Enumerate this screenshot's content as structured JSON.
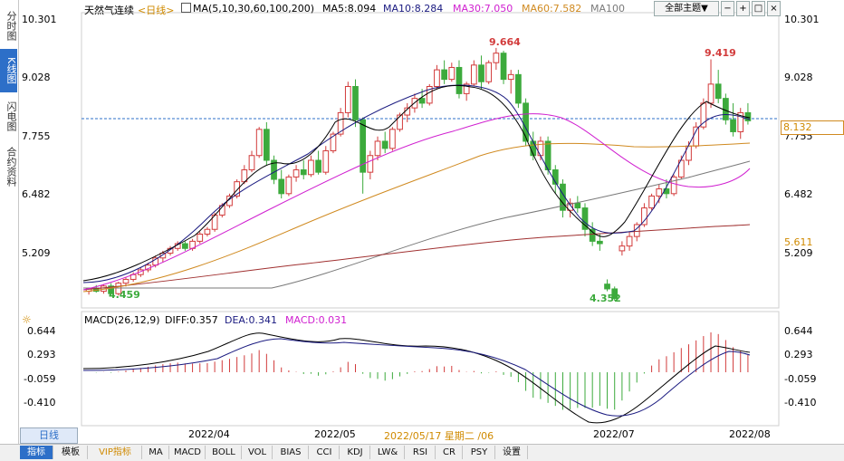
{
  "side_tabs": [
    {
      "label": "分时图",
      "active": false
    },
    {
      "label": "K线图",
      "active": true
    },
    {
      "label": "闪电图",
      "active": false
    },
    {
      "label": "合约资料",
      "active": false
    }
  ],
  "header": {
    "instrument": "天然气连续",
    "period": "<日线>",
    "ma_label": "MA(5,10,30,60,100,200)",
    "ma5": "MA5:8.094",
    "ma10": "MA10:8.284",
    "ma30": "MA30:7.050",
    "ma60": "MA60:7.582",
    "ma100": "MA100",
    "theme_button": "全部主题▼"
  },
  "colors": {
    "up": "#d23b3b",
    "down": "#3caa3c",
    "ma5": "#000000",
    "ma10": "#1a1a80",
    "ma30": "#d020d0",
    "ma60": "#d08a20",
    "ma100": "#7a7a7a",
    "ma200": "#a03030",
    "macd_diff": "#000000",
    "macd_dea": "#1a1a80",
    "accent": "#2d6fc8"
  },
  "price_axis": {
    "ticks": [
      "10.301",
      "9.028",
      "7.755",
      "6.482",
      "5.209"
    ],
    "current_price": "8.132",
    "ma_tag": "5.611",
    "high_label": "9.664",
    "high2_label": "9.419",
    "low_label": "4.352",
    "low_start_label": "4.459"
  },
  "macd": {
    "label": "MACD(26,12,9)",
    "diff": "DIFF:0.357",
    "dea": "DEA:0.341",
    "macd": "MACD:0.031",
    "ticks": [
      "0.644",
      "0.293",
      "-0.059",
      "-0.410"
    ]
  },
  "date_axis": {
    "labels": [
      "2022/04",
      "2022/05",
      "2022/05/17 星期二 /06",
      "2022/07",
      "2022/08"
    ],
    "period_tag": "日线"
  },
  "toolbar": {
    "items": [
      "指标",
      "模板",
      "VIP指标",
      "MA",
      "MACD",
      "BOLL",
      "VOL",
      "BIAS",
      "CCI",
      "KDJ",
      "LW&",
      "RSI",
      "CR",
      "PSY",
      "设置"
    ]
  },
  "chart_data": {
    "type": "candlestick",
    "title": "天然气连续 日线",
    "ylim": [
      4.2,
      10.4
    ],
    "series": [
      {
        "name": "OHLC",
        "values": [
          [
            4.55,
            4.62,
            4.48,
            4.6
          ],
          [
            4.6,
            4.68,
            4.52,
            4.55
          ],
          [
            4.55,
            4.7,
            4.5,
            4.66
          ],
          [
            4.66,
            4.72,
            4.45,
            4.5
          ],
          [
            4.5,
            4.75,
            4.46,
            4.72
          ],
          [
            4.72,
            4.85,
            4.65,
            4.8
          ],
          [
            4.8,
            4.95,
            4.75,
            4.9
          ],
          [
            4.9,
            5.05,
            4.85,
            5.0
          ],
          [
            5.0,
            5.15,
            4.95,
            5.1
          ],
          [
            5.1,
            5.3,
            5.05,
            5.25
          ],
          [
            5.25,
            5.4,
            5.15,
            5.35
          ],
          [
            5.35,
            5.5,
            5.3,
            5.45
          ],
          [
            5.45,
            5.6,
            5.4,
            5.55
          ],
          [
            5.55,
            5.6,
            5.4,
            5.45
          ],
          [
            5.45,
            5.65,
            5.4,
            5.6
          ],
          [
            5.6,
            5.8,
            5.55,
            5.75
          ],
          [
            5.75,
            5.9,
            5.7,
            5.85
          ],
          [
            5.85,
            6.2,
            5.8,
            6.15
          ],
          [
            6.15,
            6.4,
            6.1,
            6.35
          ],
          [
            6.35,
            6.6,
            6.3,
            6.55
          ],
          [
            6.55,
            6.9,
            6.5,
            6.85
          ],
          [
            6.85,
            7.2,
            6.8,
            7.1
          ],
          [
            7.1,
            7.5,
            7.05,
            7.4
          ],
          [
            7.4,
            8.0,
            7.35,
            7.95
          ],
          [
            7.95,
            8.1,
            7.2,
            7.3
          ],
          [
            7.3,
            7.4,
            6.8,
            6.9
          ],
          [
            6.9,
            7.1,
            6.5,
            6.6
          ],
          [
            6.6,
            7.0,
            6.55,
            6.95
          ],
          [
            6.95,
            7.2,
            6.85,
            7.1
          ],
          [
            7.1,
            7.3,
            6.9,
            7.0
          ],
          [
            7.0,
            7.4,
            6.95,
            7.3
          ],
          [
            7.3,
            7.5,
            7.0,
            7.05
          ],
          [
            7.05,
            7.6,
            7.0,
            7.5
          ],
          [
            7.5,
            7.9,
            7.45,
            7.85
          ],
          [
            7.85,
            8.4,
            7.8,
            8.3
          ],
          [
            8.3,
            8.95,
            8.2,
            8.85
          ],
          [
            8.85,
            9.0,
            8.0,
            8.15
          ],
          [
            8.15,
            8.2,
            6.6,
            7.05
          ],
          [
            7.05,
            7.5,
            6.9,
            7.4
          ],
          [
            7.4,
            7.8,
            7.3,
            7.7
          ],
          [
            7.7,
            7.9,
            7.45,
            7.55
          ],
          [
            7.55,
            8.0,
            7.5,
            7.95
          ],
          [
            7.95,
            8.3,
            7.9,
            8.25
          ],
          [
            8.25,
            8.5,
            8.1,
            8.4
          ],
          [
            8.4,
            8.7,
            8.3,
            8.6
          ],
          [
            8.6,
            8.8,
            8.4,
            8.5
          ],
          [
            8.5,
            8.9,
            8.45,
            8.85
          ],
          [
            8.85,
            9.3,
            8.8,
            9.2
          ],
          [
            9.2,
            9.4,
            8.9,
            9.0
          ],
          [
            9.0,
            9.35,
            8.95,
            9.25
          ],
          [
            9.25,
            9.4,
            8.6,
            8.7
          ],
          [
            8.7,
            8.95,
            8.55,
            8.9
          ],
          [
            8.9,
            9.4,
            8.85,
            9.3
          ],
          [
            9.3,
            9.5,
            8.8,
            8.95
          ],
          [
            8.95,
            9.4,
            8.9,
            9.35
          ],
          [
            9.35,
            9.66,
            9.2,
            9.55
          ],
          [
            9.55,
            9.6,
            8.9,
            9.0
          ],
          [
            9.0,
            9.2,
            8.7,
            9.1
          ],
          [
            9.1,
            9.2,
            8.4,
            8.5
          ],
          [
            8.5,
            8.6,
            7.6,
            7.7
          ],
          [
            7.7,
            7.9,
            7.3,
            7.4
          ],
          [
            7.4,
            7.8,
            7.3,
            7.7
          ],
          [
            7.7,
            7.8,
            7.0,
            7.1
          ],
          [
            7.1,
            7.2,
            6.6,
            6.8
          ],
          [
            6.8,
            6.9,
            6.1,
            6.25
          ],
          [
            6.25,
            6.5,
            6.1,
            6.4
          ],
          [
            6.4,
            6.55,
            6.2,
            6.3
          ],
          [
            6.3,
            6.4,
            5.7,
            5.85
          ],
          [
            5.85,
            6.0,
            5.5,
            5.6
          ],
          [
            5.6,
            5.75,
            5.4,
            5.55
          ],
          [
            4.7,
            4.8,
            4.55,
            4.6
          ],
          [
            4.6,
            4.65,
            4.35,
            4.4
          ],
          [
            5.4,
            5.6,
            5.3,
            5.5
          ],
          [
            5.5,
            5.8,
            5.4,
            5.7
          ],
          [
            5.7,
            6.0,
            5.6,
            5.95
          ],
          [
            5.95,
            6.4,
            5.9,
            6.3
          ],
          [
            6.3,
            6.6,
            6.25,
            6.55
          ],
          [
            6.55,
            6.8,
            6.4,
            6.7
          ],
          [
            6.7,
            6.9,
            6.5,
            6.6
          ],
          [
            6.6,
            7.0,
            6.55,
            6.95
          ],
          [
            6.95,
            7.4,
            6.9,
            7.3
          ],
          [
            7.3,
            7.7,
            7.2,
            7.6
          ],
          [
            7.6,
            8.1,
            7.55,
            8.0
          ],
          [
            8.0,
            8.6,
            7.95,
            8.5
          ],
          [
            8.5,
            9.42,
            8.4,
            8.9
          ],
          [
            8.9,
            9.2,
            8.5,
            8.6
          ],
          [
            8.6,
            8.7,
            8.05,
            8.15
          ],
          [
            8.15,
            8.5,
            7.8,
            7.9
          ],
          [
            7.9,
            8.4,
            7.75,
            8.3
          ],
          [
            8.3,
            8.5,
            8.05,
            8.13
          ]
        ]
      }
    ]
  }
}
